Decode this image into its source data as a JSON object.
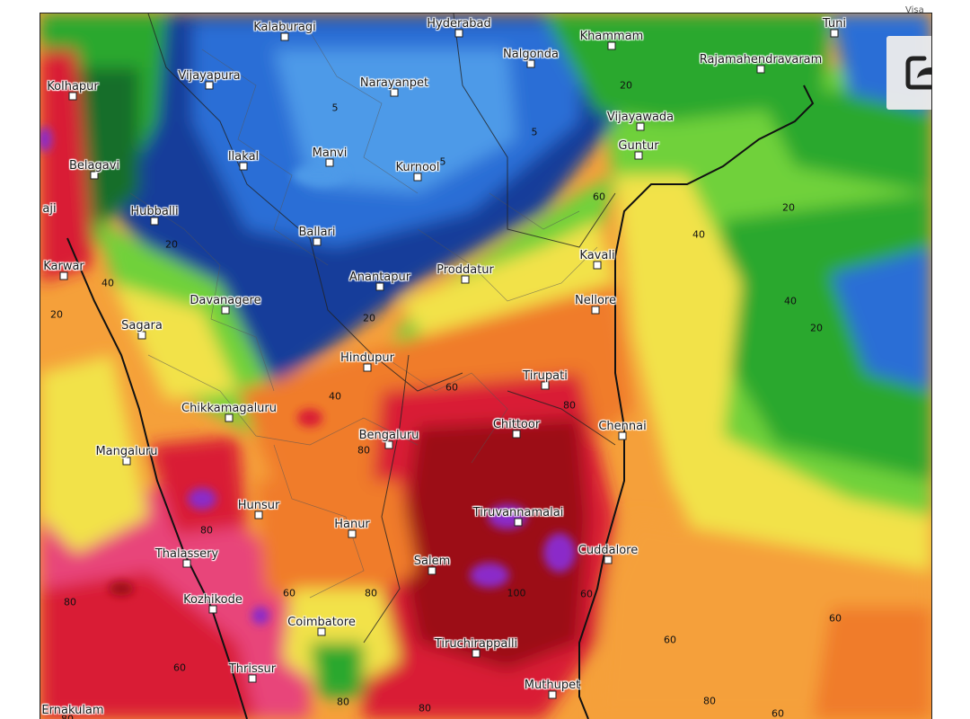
{
  "map": {
    "cities": [
      {
        "name": "Hyderabad"
      },
      {
        "name": "Kalaburagi"
      },
      {
        "name": "Khammam"
      },
      {
        "name": "Tuni"
      },
      {
        "name": "Nalgonda"
      },
      {
        "name": "Rajamahendravaram"
      },
      {
        "name": "Vijayapura"
      },
      {
        "name": "Narayanpet"
      },
      {
        "name": "Kolhapur"
      },
      {
        "name": "Vijayawada"
      },
      {
        "name": "Guntur"
      },
      {
        "name": "Ilakal"
      },
      {
        "name": "Manvi"
      },
      {
        "name": "Kurnool"
      },
      {
        "name": "Belagavi"
      },
      {
        "name": "Hubballi"
      },
      {
        "name": "Ballari"
      },
      {
        "name": "Kavali"
      },
      {
        "name": "Karwar"
      },
      {
        "name": "Proddatur"
      },
      {
        "name": "Anantapur"
      },
      {
        "name": "Davanagere"
      },
      {
        "name": "Nellore"
      },
      {
        "name": "Sagara"
      },
      {
        "name": "Hindupur"
      },
      {
        "name": "Tirupati"
      },
      {
        "name": "Chikkamagaluru"
      },
      {
        "name": "Chittoor"
      },
      {
        "name": "Chennai"
      },
      {
        "name": "Bengaluru"
      },
      {
        "name": "Mangaluru"
      },
      {
        "name": "Tiruvannamalai"
      },
      {
        "name": "Hunsur"
      },
      {
        "name": "Hanur"
      },
      {
        "name": "Cuddalore"
      },
      {
        "name": "Thalassery"
      },
      {
        "name": "Salem"
      },
      {
        "name": "Kozhikode"
      },
      {
        "name": "Coimbatore"
      },
      {
        "name": "Tiruchirappalli"
      },
      {
        "name": "Thrissur"
      },
      {
        "name": "Muthupet"
      }
    ],
    "contour_labels": [
      "20",
      "5",
      "5",
      "5",
      "20",
      "60",
      "40",
      "40",
      "20",
      "20",
      "40",
      "20",
      "20",
      "40",
      "60",
      "80",
      "80",
      "80",
      "80",
      "80",
      "100",
      "60",
      "80",
      "60",
      "60",
      "60",
      "60",
      "80",
      "80",
      "80",
      "60"
    ],
    "partial_labels": [
      "Ernakulam",
      "Visa",
      "aji"
    ],
    "palette": {
      "deep_red": "#9c0d17",
      "red": "#d91e36",
      "pink": "#e8457a",
      "orange": "#f07b2b",
      "light_orange": "#f5a03a",
      "yellow": "#f2e24a",
      "yellow_green": "#c9e43a",
      "light_green": "#6fd13a",
      "green": "#2ba82f",
      "dark_green": "#126e2b",
      "blue": "#2a6ed6",
      "light_blue": "#4d9ae8",
      "navy": "#163e9a",
      "purple": "#8b2ac9"
    }
  },
  "controls": {
    "share_icon": "share-arrow-icon"
  }
}
